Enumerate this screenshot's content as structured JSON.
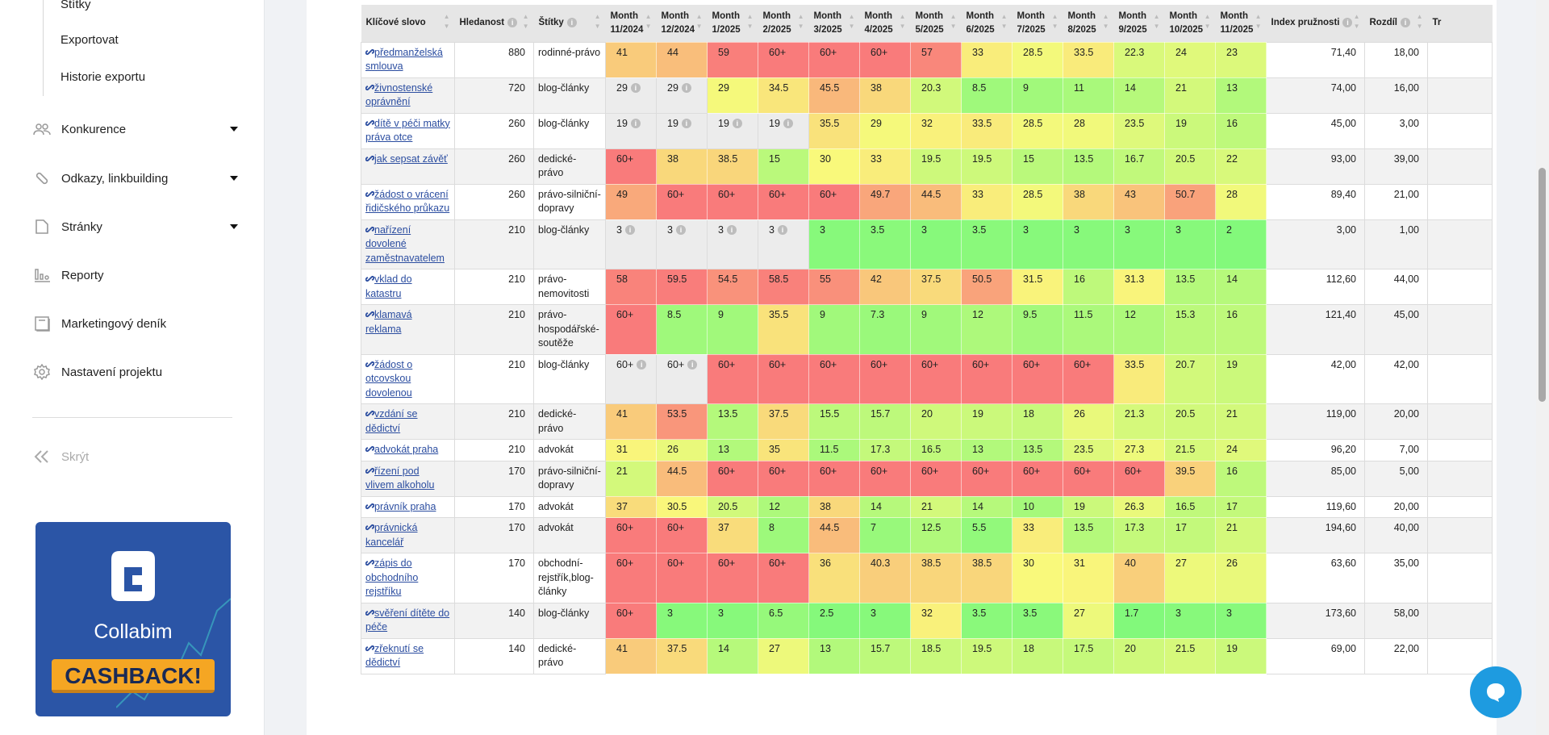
{
  "sidebar": {
    "subitems": [
      "Štítky",
      "Exportovat",
      "Historie exportu"
    ],
    "items": [
      {
        "label": "Konkurence",
        "icon": "users-icon",
        "caret": true
      },
      {
        "label": "Odkazy, linkbuilding",
        "icon": "link-icon",
        "caret": true
      },
      {
        "label": "Stránky",
        "icon": "page-icon",
        "caret": true
      },
      {
        "label": "Reporty",
        "icon": "bar-chart-icon",
        "caret": false
      },
      {
        "label": "Marketingový deník",
        "icon": "book-icon",
        "caret": false
      },
      {
        "label": "Nastavení projektu",
        "icon": "gear-icon",
        "caret": false
      }
    ],
    "hide_label": "Skrýt",
    "banner": {
      "brand": "Collabim",
      "cta": "CASHBACK!",
      "bg": "#2b55a6",
      "cta_color": "#f5a623"
    }
  },
  "table": {
    "headers": {
      "keyword": "Klíčové slovo",
      "volume": "Hledanost",
      "tags": "Štítky",
      "months": [
        "Month 11/2024",
        "Month 12/2024",
        "Month 1/2025",
        "Month 2/2025",
        "Month 3/2025",
        "Month 4/2025",
        "Month 5/2025",
        "Month 6/2025",
        "Month 7/2025",
        "Month 8/2025",
        "Month 9/2025",
        "Month 10/2025",
        "Month 11/2025"
      ],
      "index": "Index pružnosti",
      "diff": "Rozdíl",
      "next": "Tr"
    },
    "estimated_color": "#ececec",
    "rows": [
      {
        "kw": "předmanželská smlouva",
        "vol": "880",
        "tags": "rodinné-právo",
        "m": [
          "41",
          "44",
          "59",
          "60+",
          "60+",
          "60+",
          "57",
          "33",
          "28.5",
          "33.5",
          "22.3",
          "24",
          "23"
        ],
        "est": [],
        "index": "71,40",
        "diff": "18,00"
      },
      {
        "kw": "živnostenské oprávnění",
        "vol": "720",
        "tags": "blog-články",
        "m": [
          "29",
          "29",
          "29",
          "34.5",
          "45.5",
          "38",
          "20.3",
          "8.5",
          "9",
          "11",
          "14",
          "21",
          "13"
        ],
        "est": [
          0,
          1
        ],
        "index": "74,00",
        "diff": "16,00"
      },
      {
        "kw": "dítě v péči matky práva otce",
        "vol": "260",
        "tags": "blog-články",
        "m": [
          "19",
          "19",
          "19",
          "19",
          "35.5",
          "29",
          "32",
          "33.5",
          "28.5",
          "28",
          "23.5",
          "19",
          "16"
        ],
        "est": [
          0,
          1,
          2,
          3
        ],
        "index": "45,00",
        "diff": "3,00"
      },
      {
        "kw": "jak sepsat závěť",
        "vol": "260",
        "tags": "dedické-právo",
        "m": [
          "60+",
          "38",
          "38.5",
          "15",
          "30",
          "33",
          "19.5",
          "19.5",
          "15",
          "13.5",
          "16.7",
          "20.5",
          "22"
        ],
        "est": [],
        "index": "93,00",
        "diff": "39,00"
      },
      {
        "kw": "žádost o vrácení řidičského průkazu",
        "vol": "260",
        "tags": "právo-silniční-dopravy",
        "m": [
          "49",
          "60+",
          "60+",
          "60+",
          "60+",
          "49.7",
          "44.5",
          "33",
          "28.5",
          "38",
          "43",
          "50.7",
          "28"
        ],
        "est": [],
        "index": "89,40",
        "diff": "21,00"
      },
      {
        "kw": "nařízení dovolené zaměstnavatelem",
        "vol": "210",
        "tags": "blog-články",
        "m": [
          "3",
          "3",
          "3",
          "3",
          "3",
          "3.5",
          "3",
          "3.5",
          "3",
          "3",
          "3",
          "3",
          "2"
        ],
        "est": [
          0,
          1,
          2,
          3
        ],
        "index": "3,00",
        "diff": "1,00"
      },
      {
        "kw": "vklad do katastru",
        "vol": "210",
        "tags": "právo-nemovitosti",
        "m": [
          "58",
          "59.5",
          "54.5",
          "58.5",
          "55",
          "42",
          "37.5",
          "50.5",
          "31.5",
          "16",
          "31.3",
          "13.5",
          "14"
        ],
        "est": [],
        "index": "112,60",
        "diff": "44,00"
      },
      {
        "kw": "klamavá reklama",
        "vol": "210",
        "tags": "právo-hospodářské-soutěže",
        "m": [
          "60+",
          "8.5",
          "9",
          "35.5",
          "9",
          "7.3",
          "9",
          "12",
          "9.5",
          "11.5",
          "12",
          "15.3",
          "16"
        ],
        "est": [],
        "index": "121,40",
        "diff": "45,00"
      },
      {
        "kw": "žádost o otcovskou dovolenou",
        "vol": "210",
        "tags": "blog-články",
        "m": [
          "60+",
          "60+",
          "60+",
          "60+",
          "60+",
          "60+",
          "60+",
          "60+",
          "60+",
          "60+",
          "33.5",
          "20.7",
          "19"
        ],
        "est": [
          0,
          1
        ],
        "index": "42,00",
        "diff": "42,00"
      },
      {
        "kw": "vzdání se dědictví",
        "vol": "210",
        "tags": "dedické-právo",
        "m": [
          "41",
          "53.5",
          "13.5",
          "37.5",
          "15.5",
          "15.7",
          "20",
          "19",
          "18",
          "26",
          "21.3",
          "20.5",
          "21"
        ],
        "est": [],
        "index": "119,00",
        "diff": "20,00"
      },
      {
        "kw": "advokát praha",
        "vol": "210",
        "tags": "advokát",
        "m": [
          "31",
          "26",
          "13",
          "35",
          "11.5",
          "17.3",
          "16.5",
          "13",
          "13.5",
          "23.5",
          "27.3",
          "21.5",
          "24"
        ],
        "est": [],
        "index": "96,20",
        "diff": "7,00"
      },
      {
        "kw": "řízení pod vlivem alkoholu",
        "vol": "170",
        "tags": "právo-silniční-dopravy",
        "m": [
          "21",
          "44.5",
          "60+",
          "60+",
          "60+",
          "60+",
          "60+",
          "60+",
          "60+",
          "60+",
          "60+",
          "39.5",
          "16"
        ],
        "est": [],
        "index": "85,00",
        "diff": "5,00"
      },
      {
        "kw": "právník praha",
        "vol": "170",
        "tags": "advokát",
        "m": [
          "37",
          "30.5",
          "20.5",
          "12",
          "38",
          "14",
          "21",
          "14",
          "10",
          "19",
          "26.3",
          "16.5",
          "17"
        ],
        "est": [],
        "index": "119,60",
        "diff": "20,00"
      },
      {
        "kw": "právnická kancelář",
        "vol": "170",
        "tags": "advokát",
        "m": [
          "60+",
          "60+",
          "37",
          "8",
          "44.5",
          "7",
          "12.5",
          "5.5",
          "33",
          "13.5",
          "17.3",
          "17",
          "21"
        ],
        "est": [],
        "index": "194,60",
        "diff": "40,00"
      },
      {
        "kw": "zápis do obchodního rejstříku",
        "vol": "170",
        "tags": "obchodní-rejstřík,blog-články",
        "m": [
          "60+",
          "60+",
          "60+",
          "60+",
          "36",
          "40.3",
          "38.5",
          "38.5",
          "30",
          "31",
          "40",
          "27",
          "26"
        ],
        "est": [],
        "index": "63,60",
        "diff": "35,00"
      },
      {
        "kw": "svěření dítěte do péče",
        "vol": "140",
        "tags": "blog-články",
        "m": [
          "60+",
          "3",
          "3",
          "6.5",
          "2.5",
          "3",
          "32",
          "3.5",
          "3.5",
          "27",
          "1.7",
          "3",
          "3"
        ],
        "est": [],
        "index": "173,60",
        "diff": "58,00"
      },
      {
        "kw": "zřeknutí se dědictví",
        "vol": "140",
        "tags": "dedické-právo",
        "m": [
          "41",
          "37.5",
          "14",
          "27",
          "13",
          "15.7",
          "18.5",
          "19.5",
          "18",
          "17.5",
          "20",
          "21.5",
          "19"
        ],
        "est": [],
        "index": "69,00",
        "diff": "22,00"
      }
    ]
  }
}
